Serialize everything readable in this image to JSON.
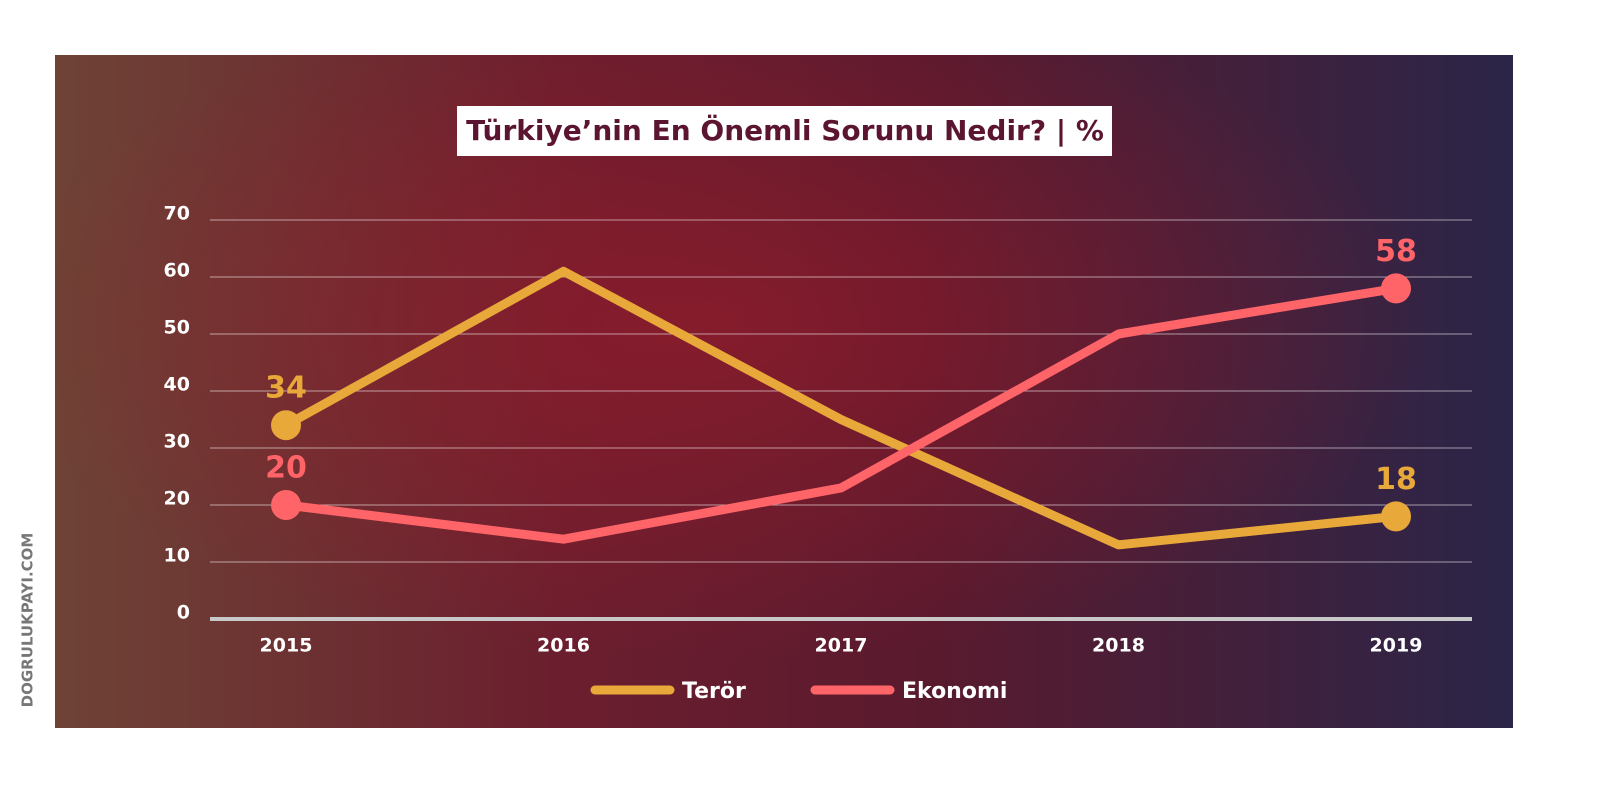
{
  "chart_data": {
    "type": "line",
    "title": "Türkiye’nin En Önemli Sorunu Nedir? | %",
    "watermark": "DOGRULUKPAYI.COM",
    "categories": [
      "2015",
      "2016",
      "2017",
      "2018",
      "2019"
    ],
    "series": [
      {
        "name": "Terör",
        "color": "#e8a83a",
        "values": [
          34,
          61,
          35,
          13,
          18
        ],
        "value_labels": [
          "34",
          null,
          null,
          null,
          "18"
        ]
      },
      {
        "name": "Ekonomi",
        "color": "#ff6468",
        "values": [
          20,
          14,
          23,
          50,
          58
        ],
        "value_labels": [
          "20",
          null,
          null,
          null,
          "58"
        ]
      }
    ],
    "ylim": [
      0,
      70
    ],
    "yticks": [
      0,
      10,
      20,
      30,
      40,
      50,
      60,
      70
    ],
    "grid": true,
    "legend": "bottom"
  }
}
